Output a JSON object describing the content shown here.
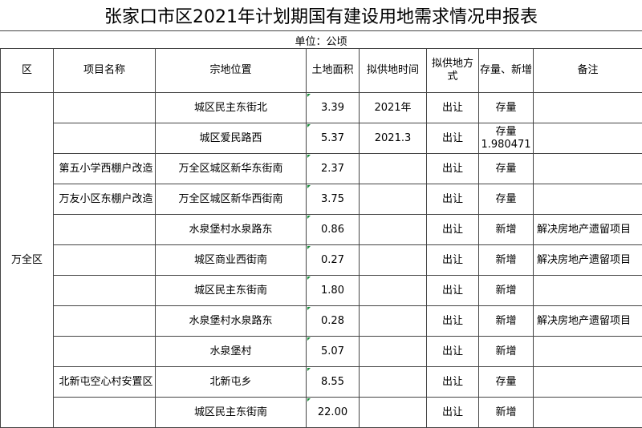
{
  "title": "张家口市区2021年计划期国有建设用地需求情况申报表",
  "unit": "单位：公顷",
  "headers": {
    "district": "区",
    "project": "项目名称",
    "location": "宗地位置",
    "area": "土地面积",
    "time": "拟供地时间",
    "method": "拟供地方式",
    "type": "存量、新增",
    "note": "备注"
  },
  "district": "万全区",
  "rows": [
    {
      "project": "",
      "location": "城区民主东街北",
      "area": "3.39",
      "time": "2021年",
      "method": "出让",
      "type": "存量",
      "note": ""
    },
    {
      "project": "",
      "location": "城区爱民路西",
      "area": "5.37",
      "time": "2021.3",
      "method": "出让",
      "type": "存量\n1.980471",
      "note": ""
    },
    {
      "project": "第五小学西棚户改造",
      "location": "万全区城区新华东街南",
      "area": "2.37",
      "time": "",
      "method": "出让",
      "type": "存量",
      "note": ""
    },
    {
      "project": "万友小区东棚户改造",
      "location": "万全区城区新华西街南",
      "area": "3.75",
      "time": "",
      "method": "出让",
      "type": "存量",
      "note": ""
    },
    {
      "project": "",
      "location": "水泉堡村水泉路东",
      "area": "0.86",
      "time": "",
      "method": "出让",
      "type": "新增",
      "note": "解决房地产遗留项目"
    },
    {
      "project": "",
      "location": "城区商业西街南",
      "area": "0.27",
      "time": "",
      "method": "出让",
      "type": "新增",
      "note": "解决房地产遗留项目"
    },
    {
      "project": "",
      "location": "城区民主东街南",
      "area": "1.80",
      "time": "",
      "method": "出让",
      "type": "新增",
      "note": ""
    },
    {
      "project": "",
      "location": "水泉堡村水泉路东",
      "area": "0.28",
      "time": "",
      "method": "出让",
      "type": "新增",
      "note": "解决房地产遗留项目"
    },
    {
      "project": "",
      "location": "水泉堡村",
      "area": "5.07",
      "time": "",
      "method": "出让",
      "type": "新增",
      "note": ""
    },
    {
      "project": "北新屯空心村安置区",
      "location": "北新屯乡",
      "area": "8.55",
      "time": "",
      "method": "出让",
      "type": "存量",
      "note": ""
    },
    {
      "project": "",
      "location": "城区民主东街南",
      "area": "22.00",
      "time": "",
      "method": "出让",
      "type": "新增",
      "note": ""
    }
  ]
}
